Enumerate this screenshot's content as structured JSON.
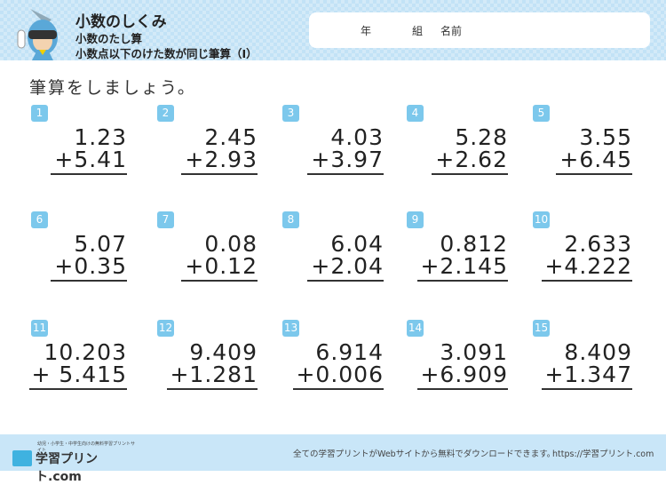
{
  "header": {
    "title": "小数のしくみ",
    "subtitle": "小数のたし算",
    "topic": "小数点以下のけた数が同じ筆算（I）",
    "year_label": "年",
    "class_label": "組",
    "name_label": "名前"
  },
  "instruction": "筆算をしましょう。",
  "problems": [
    {
      "n": "1",
      "a": "1.23",
      "b": "+5.41"
    },
    {
      "n": "2",
      "a": "2.45",
      "b": "+2.93"
    },
    {
      "n": "3",
      "a": "4.03",
      "b": "+3.97"
    },
    {
      "n": "4",
      "a": "5.28",
      "b": "+2.62"
    },
    {
      "n": "5",
      "a": "3.55",
      "b": "+6.45"
    },
    {
      "n": "6",
      "a": "5.07",
      "b": "+0.35"
    },
    {
      "n": "7",
      "a": "0.08",
      "b": "+0.12"
    },
    {
      "n": "8",
      "a": "6.04",
      "b": "+2.04"
    },
    {
      "n": "9",
      "a": "0.812",
      "b": "+2.145"
    },
    {
      "n": "10",
      "a": "2.633",
      "b": "+4.222"
    },
    {
      "n": "11",
      "a": "10.203",
      "b": "+ 5.415"
    },
    {
      "n": "12",
      "a": "9.409",
      "b": "+1.281"
    },
    {
      "n": "13",
      "a": "6.914",
      "b": "+0.006"
    },
    {
      "n": "14",
      "a": "3.091",
      "b": "+6.909"
    },
    {
      "n": "15",
      "a": "8.409",
      "b": "+1.347"
    }
  ],
  "footer": {
    "logo_text": "学習プリント.com",
    "logo_tagline": "幼児・小学生・中学生向けの無料学習プリントサイト",
    "message": "全ての学習プリントがWebサイトから無料でダウンロードできます。",
    "url": "https://学習プリント.com"
  },
  "colors": {
    "header_bg": "#d3eaf8",
    "badge": "#7cc8ec",
    "footer_bg": "#c9e6f8"
  }
}
